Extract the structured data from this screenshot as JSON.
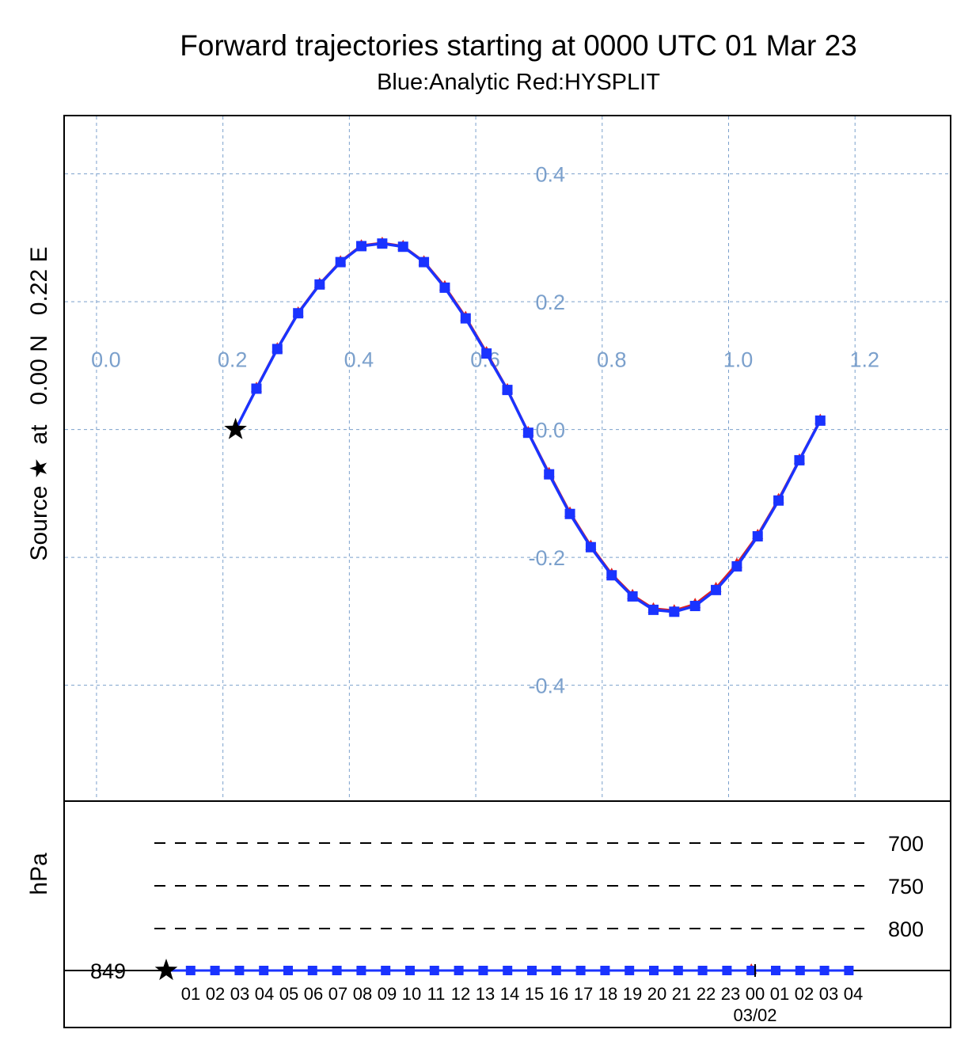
{
  "title": "Forward trajectories starting at 0000 UTC 01 Mar 23",
  "subtitle": "Blue:Analytic  Red:HYSPLIT",
  "ylabel": "Source ★  at   0.00 N   0.22 E",
  "height_panel": {
    "ylabel": "hPa",
    "source_level": "849",
    "levels": [
      "700",
      "750",
      "800"
    ],
    "time_labels": [
      "01",
      "02",
      "03",
      "04",
      "05",
      "06",
      "07",
      "08",
      "09",
      "10",
      "11",
      "12",
      "13",
      "14",
      "15",
      "16",
      "17",
      "18",
      "19",
      "20",
      "21",
      "22",
      "23",
      "00",
      "01",
      "02",
      "03",
      "04"
    ],
    "date_label": "03/02"
  },
  "colors": {
    "analytic": "#1a33ff",
    "hysplit": "#e02020",
    "grid": "#7ba0cc",
    "source": "#000000"
  },
  "chart_data": {
    "type": "line",
    "title": "Forward trajectories starting at 0000 UTC 01 Mar 23",
    "subtitle": "Blue:Analytic  Red:HYSPLIT",
    "xlabel": "",
    "ylabel": "Source ★  at   0.00 N   0.22 E",
    "x_ticks": [
      0.0,
      0.2,
      0.4,
      0.6,
      0.8,
      1.0,
      1.2
    ],
    "y_ticks": [
      0.4,
      0.2,
      0.0,
      -0.2,
      -0.4
    ],
    "x_tick_labels": [
      "0.0",
      "0.2",
      "0.4",
      "0.6",
      "0.8",
      "1.0",
      "1.2"
    ],
    "y_tick_labels": [
      "0.4",
      "0.2",
      "0.0",
      "-0.2",
      "-0.4"
    ],
    "xlim": [
      -0.05,
      1.35
    ],
    "ylim": [
      -0.58,
      0.49
    ],
    "grid": true,
    "source": {
      "lon": 0.22,
      "lat": 0.0
    },
    "series": [
      {
        "name": "Analytic",
        "lon": [
          0.22,
          0.253,
          0.286,
          0.319,
          0.353,
          0.386,
          0.419,
          0.452,
          0.485,
          0.518,
          0.551,
          0.584,
          0.617,
          0.65,
          0.683,
          0.716,
          0.749,
          0.782,
          0.815,
          0.848,
          0.881,
          0.914,
          0.947,
          0.98,
          1.013,
          1.046,
          1.079,
          1.112,
          1.145
        ],
        "lat": [
          0.0,
          0.064,
          0.126,
          0.182,
          0.227,
          0.262,
          0.287,
          0.291,
          0.286,
          0.262,
          0.222,
          0.174,
          0.119,
          0.062,
          -0.005,
          -0.07,
          -0.132,
          -0.184,
          -0.228,
          -0.261,
          -0.282,
          -0.285,
          -0.276,
          -0.251,
          -0.214,
          -0.167,
          -0.111,
          -0.048,
          0.014
        ],
        "pressure": [
          849,
          849,
          849,
          849,
          849,
          849,
          849,
          849,
          849,
          849,
          849,
          849,
          849,
          849,
          849,
          849,
          849,
          849,
          849,
          849,
          849,
          849,
          849,
          849,
          849,
          849,
          849,
          849,
          849
        ]
      },
      {
        "name": "HYSPLIT",
        "lon": [
          0.22,
          0.253,
          0.286,
          0.319,
          0.353,
          0.386,
          0.419,
          0.452,
          0.485,
          0.518,
          0.551,
          0.584,
          0.617,
          0.65,
          0.683,
          0.716,
          0.749,
          0.782,
          0.815,
          0.848,
          0.881,
          0.914,
          0.947,
          0.98,
          1.013,
          1.046,
          1.079,
          1.112,
          1.145
        ],
        "lat": [
          0.0,
          0.065,
          0.127,
          0.183,
          0.228,
          0.263,
          0.288,
          0.292,
          0.287,
          0.263,
          0.224,
          0.176,
          0.121,
          0.063,
          -0.004,
          -0.068,
          -0.13,
          -0.182,
          -0.226,
          -0.259,
          -0.28,
          -0.283,
          -0.273,
          -0.248,
          -0.21,
          -0.165,
          -0.109,
          -0.047,
          0.015
        ],
        "pressure": [
          849,
          849,
          849,
          849,
          849,
          849,
          849,
          849,
          849,
          849,
          849,
          849,
          849,
          849,
          849,
          849,
          849,
          849,
          849,
          849,
          849,
          849,
          849,
          849,
          849,
          849,
          849,
          849,
          849
        ]
      }
    ]
  }
}
